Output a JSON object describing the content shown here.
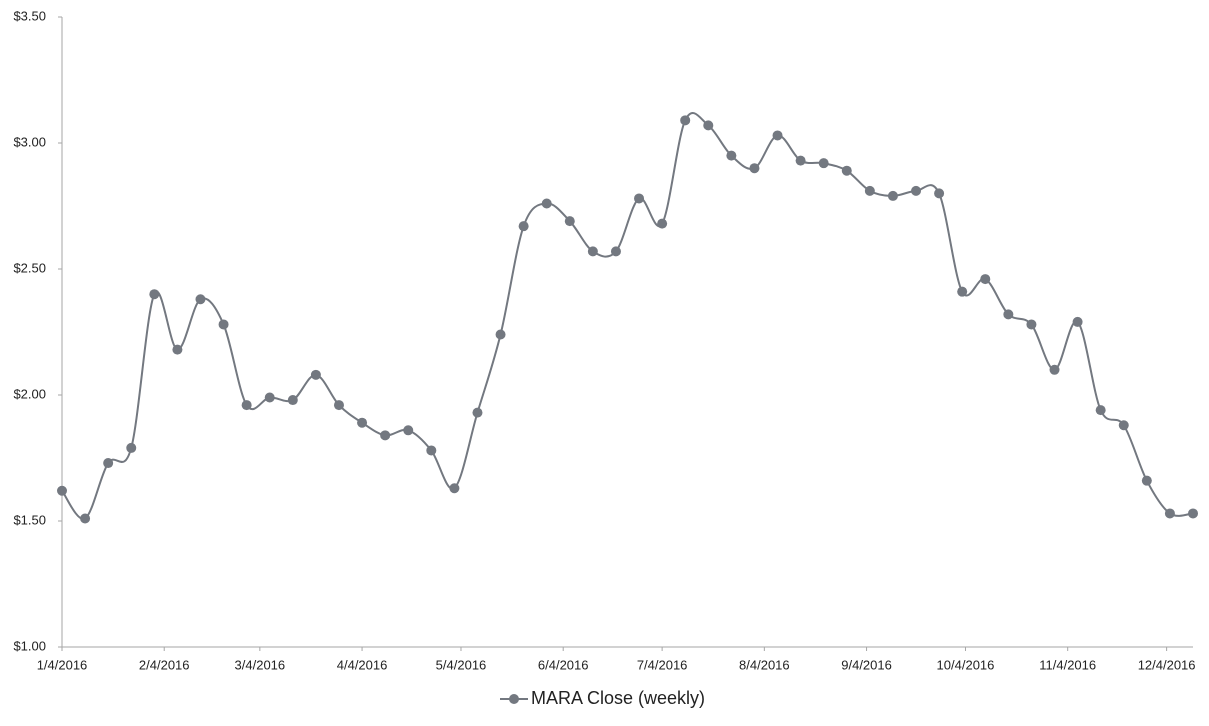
{
  "chart_data": {
    "type": "line",
    "x": [
      "1/4/2016",
      "1/11/2016",
      "1/18/2016",
      "1/25/2016",
      "2/1/2016",
      "2/8/2016",
      "2/15/2016",
      "2/22/2016",
      "2/29/2016",
      "3/7/2016",
      "3/14/2016",
      "3/21/2016",
      "3/28/2016",
      "4/4/2016",
      "4/11/2016",
      "4/18/2016",
      "4/25/2016",
      "5/2/2016",
      "5/9/2016",
      "5/16/2016",
      "5/23/2016",
      "5/30/2016",
      "6/6/2016",
      "6/13/2016",
      "6/20/2016",
      "6/27/2016",
      "7/4/2016",
      "7/11/2016",
      "7/18/2016",
      "7/25/2016",
      "8/1/2016",
      "8/8/2016",
      "8/15/2016",
      "8/22/2016",
      "8/29/2016",
      "9/5/2016",
      "9/12/2016",
      "9/19/2016",
      "9/26/2016",
      "10/3/2016",
      "10/10/2016",
      "10/17/2016",
      "10/24/2016",
      "10/31/2016",
      "11/7/2016",
      "11/14/2016",
      "11/21/2016",
      "11/28/2016",
      "12/5/2016",
      "12/12/2016"
    ],
    "series": [
      {
        "name": "MARA Close (weekly)",
        "color": "#737880",
        "values": [
          1.62,
          1.51,
          1.73,
          1.79,
          2.4,
          2.18,
          2.38,
          2.28,
          1.96,
          1.99,
          1.98,
          2.08,
          1.96,
          1.89,
          1.84,
          1.86,
          1.78,
          1.63,
          1.93,
          2.24,
          2.67,
          2.76,
          2.69,
          2.57,
          2.57,
          2.78,
          2.68,
          3.09,
          3.07,
          2.95,
          2.9,
          3.03,
          2.93,
          2.92,
          2.89,
          2.81,
          2.79,
          2.81,
          2.8,
          2.41,
          2.46,
          2.32,
          2.28,
          2.1,
          2.29,
          1.94,
          1.88,
          1.66,
          1.53,
          1.53
        ]
      }
    ],
    "xlim": [
      "1/4/2016",
      "12/12/2016"
    ],
    "xticks": [
      "1/4/2016",
      "2/4/2016",
      "3/4/2016",
      "4/4/2016",
      "5/4/2016",
      "6/4/2016",
      "7/4/2016",
      "8/4/2016",
      "9/4/2016",
      "10/4/2016",
      "11/4/2016",
      "12/4/2016"
    ],
    "ylim": [
      1,
      3.5
    ],
    "yticks": [
      {
        "value": 1,
        "label": "$1.00"
      },
      {
        "value": 1.5,
        "label": "$1.50"
      },
      {
        "value": 2,
        "label": "$2.00"
      },
      {
        "value": 2.5,
        "label": "$2.50"
      },
      {
        "value": 3,
        "label": "$3.00"
      },
      {
        "value": 3.5,
        "label": "$3.50"
      }
    ],
    "smooth": true,
    "grid": false,
    "legend": "bottom"
  }
}
